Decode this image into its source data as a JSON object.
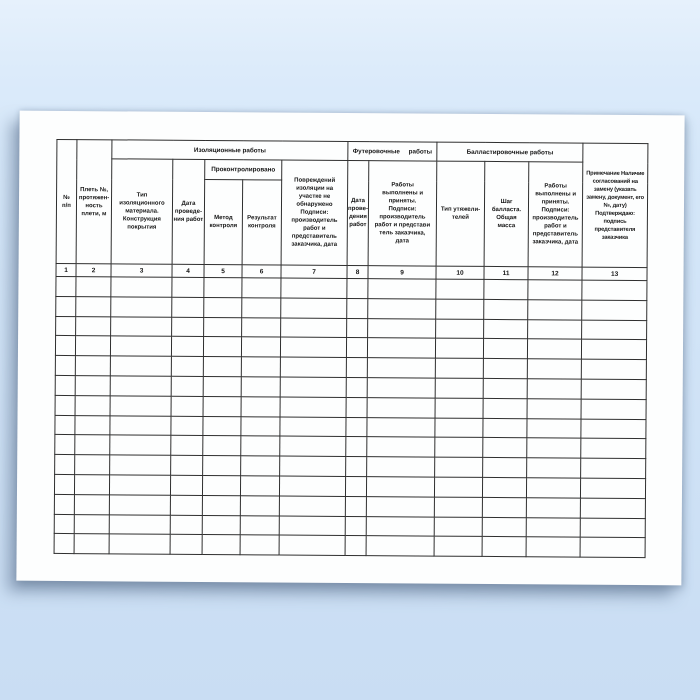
{
  "colors": {
    "background_top": "#e6f1fc",
    "background_bottom": "#c9ddf3",
    "paper": "#fdfefe",
    "grid_line": "#2f2f2f",
    "text": "#141414"
  },
  "table": {
    "groups": [
      {
        "label": "Изоляционные работы"
      },
      {
        "label": "Футеровочные работы"
      },
      {
        "label": "Балластировочные работы"
      }
    ],
    "subgroup": {
      "label": "Проконтролировано"
    },
    "columns": [
      {
        "num": "1",
        "label": "№\nп/п"
      },
      {
        "num": "2",
        "label": "Плеть №,\nпротяжен-\nность\nплети, м"
      },
      {
        "num": "3",
        "label": "Тип\nизоляционного\nматериала.\nКонструкция\nпокрытия"
      },
      {
        "num": "4",
        "label": "Дата\nпроведе-\nния работ"
      },
      {
        "num": "5",
        "label": "Метод\nконтроля"
      },
      {
        "num": "6",
        "label": "Результат\nконтроля"
      },
      {
        "num": "7",
        "label": "Повреждений\nизоляции на\nучастке не\nобнаружено\nПодписи:\nпроизводитель\nработ и\nпредставитель\nзаказчика, дата"
      },
      {
        "num": "8",
        "label": "Дата\nпрове-\nдения\nработ"
      },
      {
        "num": "9",
        "label": "Работы\nвыполнены и\nприняты.\nПодписи:\nпроизводитель\nработ и представи\nтель заказчика,\nдата"
      },
      {
        "num": "10",
        "label": "Тип утяжели-\nтелей"
      },
      {
        "num": "11",
        "label": "Шаг\nбалласта.\nОбщая\nмасса"
      },
      {
        "num": "12",
        "label": "Работы\nвыполнены и\nприняты.\nПодписи:\nпроизводитель\nработ и\nпредставитель\nзаказчика, дата"
      },
      {
        "num": "13",
        "label": "Примечание Наличие\nсогласований на\nзамену (указать\nзамену, документ, его\n№, дату)\nПодтверждаю:\nподпись\nпредставителя\nзаказчика"
      }
    ],
    "empty_row_count": 14
  }
}
